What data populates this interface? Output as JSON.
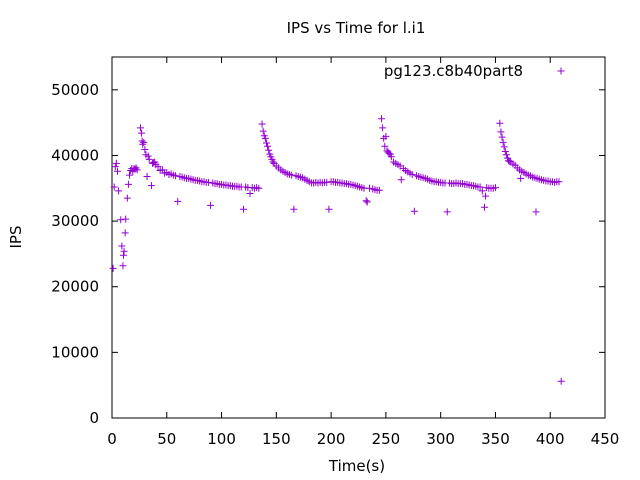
{
  "chart_data": {
    "type": "scatter",
    "title": "IPS vs Time for l.i1",
    "xlabel": "Time(s)",
    "ylabel": "IPS",
    "xlim": [
      0,
      450
    ],
    "ylim": [
      0,
      55000
    ],
    "xticks": [
      0,
      50,
      100,
      150,
      200,
      250,
      300,
      350,
      400,
      450
    ],
    "yticks": [
      0,
      10000,
      20000,
      30000,
      40000,
      50000
    ],
    "grid": false,
    "legend": "top-right",
    "marker": "+",
    "color": "#9400d3",
    "series": [
      {
        "name": "pg123.c8b40part8",
        "points": [
          [
            1,
            22800
          ],
          [
            2,
            35200
          ],
          [
            3,
            38300
          ],
          [
            4,
            38800
          ],
          [
            5,
            37600
          ],
          [
            6,
            34600
          ],
          [
            8,
            30200
          ],
          [
            9,
            26200
          ],
          [
            10,
            23200
          ],
          [
            10.5,
            24800
          ],
          [
            11,
            25400
          ],
          [
            12,
            28200
          ],
          [
            12.5,
            30300
          ],
          [
            14,
            33500
          ],
          [
            15,
            35600
          ],
          [
            16,
            37000
          ],
          [
            17,
            37700
          ],
          [
            18,
            38000
          ],
          [
            19,
            37600
          ],
          [
            20,
            38000
          ],
          [
            21,
            37900
          ],
          [
            22,
            38100
          ],
          [
            23,
            37800
          ],
          [
            26,
            44200
          ],
          [
            27,
            43400
          ],
          [
            27.5,
            42200
          ],
          [
            28,
            41700
          ],
          [
            29,
            42000
          ],
          [
            30,
            40900
          ],
          [
            31,
            40100
          ],
          [
            32,
            36800
          ],
          [
            33,
            39900
          ],
          [
            34,
            39400
          ],
          [
            36,
            35400
          ],
          [
            37,
            38800
          ],
          [
            38,
            38900
          ],
          [
            39,
            39000
          ],
          [
            40,
            38600
          ],
          [
            42,
            38300
          ],
          [
            44,
            37700
          ],
          [
            46,
            37800
          ],
          [
            48,
            37300
          ],
          [
            50,
            37400
          ],
          [
            52,
            37100
          ],
          [
            54,
            37200
          ],
          [
            56,
            37000
          ],
          [
            58,
            36900
          ],
          [
            60,
            33000
          ],
          [
            62,
            36800
          ],
          [
            64,
            36700
          ],
          [
            66,
            36600
          ],
          [
            68,
            36500
          ],
          [
            70,
            36500
          ],
          [
            72,
            36400
          ],
          [
            74,
            36300
          ],
          [
            76,
            36200
          ],
          [
            78,
            36200
          ],
          [
            80,
            36100
          ],
          [
            82,
            36000
          ],
          [
            84,
            36000
          ],
          [
            86,
            35900
          ],
          [
            88,
            35900
          ],
          [
            90,
            32400
          ],
          [
            92,
            35800
          ],
          [
            94,
            35700
          ],
          [
            96,
            35700
          ],
          [
            98,
            35600
          ],
          [
            100,
            35600
          ],
          [
            102,
            35500
          ],
          [
            104,
            35500
          ],
          [
            106,
            35400
          ],
          [
            108,
            35400
          ],
          [
            110,
            35300
          ],
          [
            112,
            35300
          ],
          [
            114,
            35300
          ],
          [
            116,
            35200
          ],
          [
            118,
            35200
          ],
          [
            120,
            31800
          ],
          [
            122,
            35200
          ],
          [
            124,
            35100
          ],
          [
            126,
            34200
          ],
          [
            128,
            35100
          ],
          [
            130,
            35000
          ],
          [
            132,
            35100
          ],
          [
            134,
            35000
          ],
          [
            137,
            44800
          ],
          [
            138,
            43700
          ],
          [
            139,
            43000
          ],
          [
            140,
            42600
          ],
          [
            141,
            41900
          ],
          [
            142,
            41400
          ],
          [
            143,
            40800
          ],
          [
            144,
            40200
          ],
          [
            145,
            39800
          ],
          [
            146,
            39400
          ],
          [
            147,
            39000
          ],
          [
            148,
            38800
          ],
          [
            150,
            38400
          ],
          [
            152,
            38100
          ],
          [
            154,
            37800
          ],
          [
            156,
            37600
          ],
          [
            158,
            37400
          ],
          [
            160,
            37200
          ],
          [
            162,
            37100
          ],
          [
            164,
            37000
          ],
          [
            166,
            31800
          ],
          [
            168,
            36900
          ],
          [
            170,
            36800
          ],
          [
            172,
            36700
          ],
          [
            174,
            36600
          ],
          [
            176,
            36400
          ],
          [
            178,
            36200
          ],
          [
            180,
            36000
          ],
          [
            182,
            35800
          ],
          [
            184,
            35800
          ],
          [
            186,
            35900
          ],
          [
            188,
            35800
          ],
          [
            190,
            35900
          ],
          [
            192,
            35800
          ],
          [
            194,
            35900
          ],
          [
            196,
            35900
          ],
          [
            198,
            31800
          ],
          [
            200,
            36000
          ],
          [
            202,
            36000
          ],
          [
            204,
            35900
          ],
          [
            206,
            35900
          ],
          [
            208,
            35800
          ],
          [
            210,
            35800
          ],
          [
            212,
            35700
          ],
          [
            214,
            35700
          ],
          [
            216,
            35600
          ],
          [
            218,
            35600
          ],
          [
            220,
            35500
          ],
          [
            222,
            35400
          ],
          [
            224,
            35300
          ],
          [
            226,
            35200
          ],
          [
            228,
            35100
          ],
          [
            230,
            35000
          ],
          [
            232,
            33100
          ],
          [
            233,
            32900
          ],
          [
            235,
            35000
          ],
          [
            238,
            34900
          ],
          [
            240,
            34800
          ],
          [
            242,
            34700
          ],
          [
            244,
            34700
          ],
          [
            246,
            45600
          ],
          [
            247,
            44200
          ],
          [
            248,
            42600
          ],
          [
            249,
            41400
          ],
          [
            250,
            42900
          ],
          [
            251,
            40700
          ],
          [
            252,
            40500
          ],
          [
            253,
            40300
          ],
          [
            254,
            40200
          ],
          [
            255,
            39800
          ],
          [
            257,
            39000
          ],
          [
            259,
            38800
          ],
          [
            261,
            38600
          ],
          [
            263,
            38400
          ],
          [
            264,
            36300
          ],
          [
            266,
            38000
          ],
          [
            268,
            37700
          ],
          [
            270,
            37500
          ],
          [
            272,
            37300
          ],
          [
            274,
            37100
          ],
          [
            276,
            31500
          ],
          [
            278,
            36900
          ],
          [
            280,
            36800
          ],
          [
            282,
            36700
          ],
          [
            284,
            36600
          ],
          [
            286,
            36500
          ],
          [
            288,
            36400
          ],
          [
            290,
            36200
          ],
          [
            292,
            36100
          ],
          [
            294,
            36000
          ],
          [
            296,
            36000
          ],
          [
            298,
            35900
          ],
          [
            300,
            35900
          ],
          [
            302,
            35800
          ],
          [
            304,
            35800
          ],
          [
            306,
            31400
          ],
          [
            308,
            35800
          ],
          [
            310,
            35700
          ],
          [
            312,
            35700
          ],
          [
            314,
            35800
          ],
          [
            316,
            35700
          ],
          [
            318,
            35700
          ],
          [
            320,
            35700
          ],
          [
            322,
            35600
          ],
          [
            324,
            35600
          ],
          [
            326,
            35500
          ],
          [
            328,
            35400
          ],
          [
            330,
            35400
          ],
          [
            332,
            35300
          ],
          [
            334,
            35200
          ],
          [
            336,
            35200
          ],
          [
            338,
            34600
          ],
          [
            340,
            32100
          ],
          [
            341,
            33800
          ],
          [
            342,
            35100
          ],
          [
            344,
            35000
          ],
          [
            346,
            35000
          ],
          [
            348,
            35000
          ],
          [
            350,
            35100
          ],
          [
            354,
            44900
          ],
          [
            355,
            43600
          ],
          [
            356,
            42800
          ],
          [
            357,
            42000
          ],
          [
            358,
            41300
          ],
          [
            359,
            40600
          ],
          [
            360,
            40100
          ],
          [
            361,
            39600
          ],
          [
            362,
            39200
          ],
          [
            363,
            39100
          ],
          [
            364,
            39000
          ],
          [
            366,
            38700
          ],
          [
            368,
            38500
          ],
          [
            370,
            38100
          ],
          [
            372,
            37800
          ],
          [
            373,
            36500
          ],
          [
            374,
            37600
          ],
          [
            376,
            37400
          ],
          [
            378,
            37200
          ],
          [
            380,
            37000
          ],
          [
            382,
            36900
          ],
          [
            384,
            36700
          ],
          [
            386,
            36600
          ],
          [
            387,
            31400
          ],
          [
            388,
            36500
          ],
          [
            390,
            36400
          ],
          [
            392,
            36300
          ],
          [
            394,
            36200
          ],
          [
            396,
            36100
          ],
          [
            398,
            36100
          ],
          [
            400,
            36000
          ],
          [
            402,
            36000
          ],
          [
            404,
            35900
          ],
          [
            406,
            36000
          ],
          [
            408,
            36000
          ],
          [
            410,
            5600
          ]
        ]
      }
    ]
  }
}
